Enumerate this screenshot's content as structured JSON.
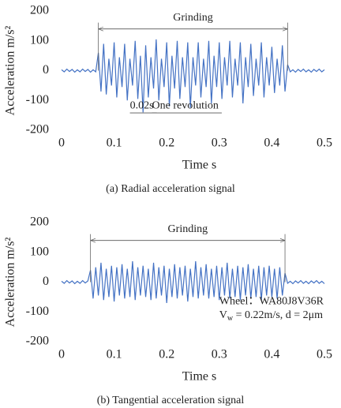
{
  "chart_data": [
    {
      "type": "line",
      "color": "#4472c4",
      "y_label": "Acceleration  m/s²",
      "x_label": "Time s",
      "caption": "(a) Radial acceleration signal",
      "xlim": [
        0,
        0.5
      ],
      "xticks": [
        0,
        0.1,
        0.2,
        0.3,
        0.4,
        0.5
      ],
      "ylim": [
        -200,
        200
      ],
      "yticks": [
        -200,
        -100,
        0,
        100,
        200
      ],
      "annotations": [
        {
          "text": "Grinding",
          "x": [
            0.07,
            0.43
          ],
          "y": 140
        },
        {
          "text": "0.02s",
          "x": 0.13,
          "y": -118
        },
        {
          "text": "One revolution",
          "x": 0.172,
          "y": -118
        }
      ],
      "x": [
        0,
        0.005,
        0.01,
        0.015,
        0.02,
        0.025,
        0.03,
        0.035,
        0.04,
        0.045,
        0.05,
        0.055,
        0.06,
        0.065,
        0.07,
        0.075,
        0.08,
        0.085,
        0.09,
        0.095,
        0.1,
        0.105,
        0.11,
        0.115,
        0.12,
        0.125,
        0.13,
        0.135,
        0.14,
        0.145,
        0.15,
        0.155,
        0.16,
        0.165,
        0.17,
        0.175,
        0.18,
        0.185,
        0.19,
        0.195,
        0.2,
        0.205,
        0.21,
        0.215,
        0.22,
        0.225,
        0.23,
        0.235,
        0.24,
        0.245,
        0.25,
        0.255,
        0.26,
        0.265,
        0.27,
        0.275,
        0.28,
        0.285,
        0.29,
        0.295,
        0.3,
        0.305,
        0.31,
        0.315,
        0.32,
        0.325,
        0.33,
        0.335,
        0.34,
        0.345,
        0.35,
        0.355,
        0.36,
        0.365,
        0.37,
        0.375,
        0.38,
        0.385,
        0.39,
        0.395,
        0.4,
        0.405,
        0.41,
        0.415,
        0.42,
        0.425,
        0.43,
        0.435,
        0.44,
        0.445,
        0.45,
        0.455,
        0.46,
        0.465,
        0.47,
        0.475,
        0.48,
        0.485,
        0.49,
        0.495,
        0.5
      ],
      "values": [
        3,
        -4,
        5,
        -3,
        4,
        -5,
        3,
        -4,
        5,
        -3,
        4,
        -5,
        3,
        -4,
        60,
        -70,
        90,
        -80,
        40,
        -50,
        95,
        -90,
        45,
        -55,
        90,
        -100,
        40,
        -50,
        100,
        -95,
        50,
        -140,
        85,
        -90,
        45,
        -60,
        105,
        -100,
        40,
        -55,
        95,
        -120,
        50,
        -60,
        100,
        -95,
        45,
        -55,
        95,
        -125,
        45,
        -50,
        95,
        -90,
        40,
        -55,
        100,
        -110,
        50,
        -55,
        95,
        -95,
        45,
        -50,
        100,
        -90,
        40,
        -50,
        95,
        -110,
        45,
        -55,
        90,
        -85,
        40,
        -50,
        95,
        -90,
        45,
        -50,
        80,
        -75,
        40,
        -50,
        85,
        -70,
        20,
        -4,
        3,
        -5,
        4,
        -3,
        5,
        -4,
        3,
        -5,
        4,
        -3,
        5,
        -4,
        3
      ]
    },
    {
      "type": "line",
      "color": "#4472c4",
      "y_label": "Acceleration  m/s²",
      "x_label": "Time  s",
      "caption": "(b) Tangential acceleration signal",
      "xlim": [
        0,
        0.5
      ],
      "xticks": [
        0,
        0.1,
        0.2,
        0.3,
        0.4,
        0.5
      ],
      "ylim": [
        -200,
        200
      ],
      "yticks": [
        -200,
        -100,
        0,
        100,
        200
      ],
      "annotations": [
        {
          "text": "Grinding",
          "x": [
            0.055,
            0.425
          ],
          "y": 140
        }
      ],
      "note": [
        "Wheel：WA80J8V36R",
        "V",
        "w",
        " = 0.22m/s, d = 2μm"
      ],
      "x": [
        0,
        0.005,
        0.01,
        0.015,
        0.02,
        0.025,
        0.03,
        0.035,
        0.04,
        0.045,
        0.05,
        0.055,
        0.06,
        0.065,
        0.07,
        0.075,
        0.08,
        0.085,
        0.09,
        0.095,
        0.1,
        0.105,
        0.11,
        0.115,
        0.12,
        0.125,
        0.13,
        0.135,
        0.14,
        0.145,
        0.15,
        0.155,
        0.16,
        0.165,
        0.17,
        0.175,
        0.18,
        0.185,
        0.19,
        0.195,
        0.2,
        0.205,
        0.21,
        0.215,
        0.22,
        0.225,
        0.23,
        0.235,
        0.24,
        0.245,
        0.25,
        0.255,
        0.26,
        0.265,
        0.27,
        0.275,
        0.28,
        0.285,
        0.29,
        0.295,
        0.3,
        0.305,
        0.31,
        0.315,
        0.32,
        0.325,
        0.33,
        0.335,
        0.34,
        0.345,
        0.35,
        0.355,
        0.36,
        0.365,
        0.37,
        0.375,
        0.38,
        0.385,
        0.39,
        0.395,
        0.4,
        0.405,
        0.41,
        0.415,
        0.42,
        0.425,
        0.43,
        0.435,
        0.44,
        0.445,
        0.45,
        0.455,
        0.46,
        0.465,
        0.47,
        0.475,
        0.48,
        0.485,
        0.49,
        0.495,
        0.5
      ],
      "values": [
        3,
        -4,
        5,
        -3,
        4,
        -5,
        3,
        -4,
        5,
        -3,
        4,
        40,
        -55,
        50,
        -45,
        65,
        -60,
        45,
        -50,
        55,
        -65,
        50,
        -45,
        60,
        -55,
        45,
        -50,
        70,
        -60,
        50,
        -45,
        55,
        -50,
        45,
        -60,
        65,
        -55,
        50,
        -45,
        55,
        -70,
        45,
        -50,
        60,
        -55,
        50,
        -45,
        55,
        -65,
        45,
        -50,
        70,
        -55,
        50,
        -45,
        60,
        -55,
        45,
        -50,
        55,
        -60,
        50,
        -45,
        65,
        -55,
        45,
        -50,
        55,
        -60,
        50,
        -45,
        60,
        -55,
        45,
        -50,
        55,
        -60,
        50,
        -45,
        55,
        -50,
        45,
        -55,
        50,
        -45,
        30,
        -4,
        3,
        -5,
        4,
        -3,
        5,
        -4,
        3,
        -5,
        4,
        -3,
        5,
        -4,
        3,
        -5
      ]
    }
  ]
}
